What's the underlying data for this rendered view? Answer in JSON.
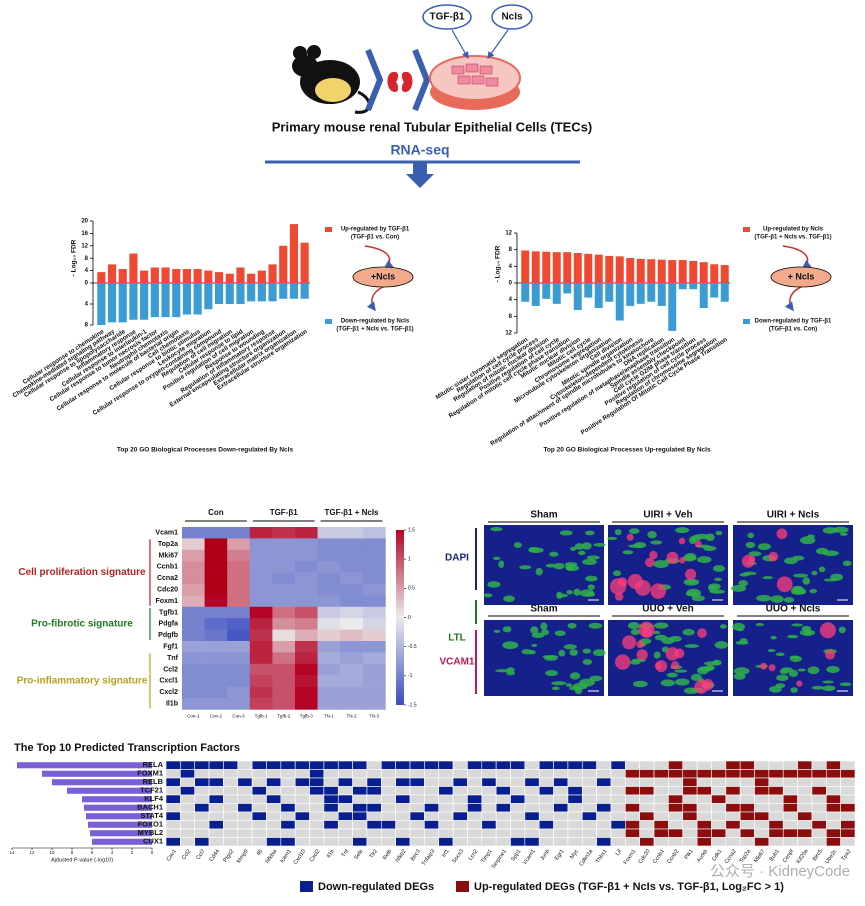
{
  "schematic": {
    "treatment": "TGF-β1",
    "drug": "NcIs",
    "cells": "Primary mouse renal Tubular Epithelial Cells (TECs)",
    "method": "RNA-seq"
  },
  "go_down": {
    "type": "bar",
    "title": "Top 20 GO Biological Processes Down-regulated By NcIs",
    "ylabel": "- Log₁₀ FDR",
    "treatment": "+NcIs",
    "categories": [
      "Cellular response to chemokine",
      "Chemokine-mediated signaling pathway",
      "Cellular response to lipopolysaccharide",
      "Inflammatory response",
      "Cellular response to interleukin-1",
      "Cellular response to tumor necrosis factor",
      "Neutrophil chemotaxis",
      "Cellular response to molecule of bacterial origin",
      "Cell chemotaxis",
      "Cellular response to biotic stimulus",
      "Leukocyte migration",
      "Cellular response to oxygen-containing compound",
      "Regulation of cell migration",
      "Cellular response to lipid",
      "Positive regulation of cell migration",
      "Response to wounding",
      "Regulation of inflammatory response",
      "External encapsulating structure organization",
      "Extracellular matrix organization",
      "Extracellular structure organization"
    ],
    "up": {
      "name": "Up-regulated by TGF-β1",
      "detail": "(TGF-β1 vs. Con)",
      "color": "#ee4a32",
      "values": [
        3.5,
        6,
        4.5,
        9.5,
        4,
        5,
        5,
        4.5,
        4.5,
        4.5,
        4,
        3.5,
        3,
        5,
        3,
        4,
        6,
        12,
        19,
        13
      ]
    },
    "down": {
      "name": "Down-regulated by NcIs",
      "detail": "(TGF-β1 + NcIs vs. TGF-β1)",
      "color": "#3b9bd3",
      "values": [
        8,
        7.5,
        7.5,
        7,
        7,
        6.5,
        6.5,
        6.5,
        6,
        6,
        5,
        4,
        4,
        4,
        3.5,
        3.5,
        3.5,
        3,
        3,
        3
      ]
    },
    "ylim_up": [
      0,
      20
    ],
    "yticks_up": [
      0,
      4,
      8,
      12,
      16,
      20
    ],
    "ylim_down": [
      0,
      8
    ],
    "yticks_down": [
      4,
      8
    ]
  },
  "go_up": {
    "type": "bar",
    "title": "Top 20 GO Biological Processes Up-regulated By NcIs",
    "ylabel": "- Log₁₀ FDR",
    "treatment": "+ NcIs",
    "categories": [
      "Mitotic sister chromatid segregation",
      "Regulation of cell cycle process",
      "Regulation of mitotic nuclear division",
      "Positive regulation of cell cycle",
      "Regulation of mitotic cell cycle phase transition",
      "Mitotic nuclear division",
      "Mitotic cell cycle",
      "Chromosome segregation",
      "Microtubule cytoskeleton organization",
      "Cell division",
      "Mitotic spindle organization",
      "Cytoskeleton-dependent cytokinesis",
      "Regulation of attachment of spindle microtubules to kinetochore",
      "DNA replication",
      "Positive regulation of metaphase/anaphase transition",
      "Spindle assembly checkpoint",
      "Cell cycle G2/M phase transition",
      "Positive regulation of cell cycle process",
      "Regulation of chromosome segregation",
      "Positive Regulation Of Mitotic Cell Cycle Phase Transition"
    ],
    "up": {
      "name": "Up-regulated by NcIs",
      "detail": "(TGF-β1 + NcIs vs. TGF-β1)",
      "color": "#ee4a32",
      "values": [
        7.8,
        7.6,
        7.5,
        7.4,
        7.4,
        7.2,
        7,
        6.8,
        6.5,
        6.4,
        6,
        5.8,
        5.7,
        5.6,
        5.5,
        5.5,
        5.3,
        5,
        4.5,
        4.3
      ]
    },
    "down": {
      "name": "Down-regulated by TGF-β1",
      "detail": "(TGF-β1 vs. Con)",
      "color": "#3b9bd3",
      "values": [
        4.5,
        5.5,
        3.8,
        5,
        2.5,
        6.5,
        3.5,
        6,
        4.5,
        9,
        5.5,
        5,
        4.5,
        5.5,
        11.5,
        1.5,
        1.5,
        6,
        3.5,
        4.5
      ]
    },
    "ylim_up": [
      0,
      12
    ],
    "yticks_up": [
      0,
      4,
      8,
      12
    ],
    "ylim_down": [
      0,
      12
    ],
    "yticks_down": [
      4,
      8,
      12
    ]
  },
  "heatmap": {
    "groups": [
      "Con",
      "TGF-β1",
      "TGF-β1 + NcIs"
    ],
    "columns": [
      "Con-1",
      "Con-2",
      "Con-3",
      "Tgfb-1",
      "Tgfb-2",
      "Tgfb-3",
      "TN-1",
      "TN-2",
      "TN-3"
    ],
    "genes": [
      "Vcam1",
      "Top2a",
      "Mki67",
      "Ccnb1",
      "Ccna2",
      "Cdc20",
      "Foxm1",
      "Tgfb1",
      "Pdgfa",
      "Pdgfb",
      "Fgf1",
      "Tnf",
      "Ccl2",
      "Cxcl1",
      "Cxcl2",
      "Il1b"
    ],
    "signatures": [
      {
        "name": "Cell proliferation signature",
        "color": "#b22222",
        "from": 1,
        "to": 6
      },
      {
        "name": "Pro-fibrotic signature",
        "color": "#1e7a1e",
        "from": 7,
        "to": 9
      },
      {
        "name": "Pro-inflammatory signature",
        "color": "#b8a21a",
        "from": 11,
        "to": 15
      }
    ],
    "values": [
      [
        -1,
        -1,
        -1,
        1.3,
        1.2,
        1.3,
        -0.3,
        -0.3,
        -0.4
      ],
      [
        0.2,
        1.6,
        0.5,
        -0.8,
        -0.8,
        -0.8,
        -0.9,
        -0.9,
        -0.9
      ],
      [
        0.5,
        1.6,
        0.7,
        -0.8,
        -0.8,
        -0.8,
        -0.9,
        -0.9,
        -0.9
      ],
      [
        0.6,
        1.6,
        0.8,
        -0.8,
        -0.8,
        -0.9,
        -0.8,
        -0.9,
        -0.9
      ],
      [
        0.6,
        1.6,
        0.8,
        -0.8,
        -0.9,
        -0.8,
        -0.9,
        -0.8,
        -0.9
      ],
      [
        0.5,
        1.6,
        0.8,
        -0.8,
        -0.8,
        -0.8,
        -0.9,
        -0.9,
        -0.8
      ],
      [
        0.4,
        1.5,
        0.8,
        -0.8,
        -0.8,
        -0.8,
        -0.8,
        -0.9,
        -0.9
      ],
      [
        -1,
        -1,
        -1,
        1.5,
        0.8,
        1,
        -0.3,
        -0.2,
        -0.3
      ],
      [
        -1,
        -1.2,
        -1.3,
        1.3,
        0.6,
        0.7,
        -0.1,
        0,
        -0.2
      ],
      [
        -1,
        -1.1,
        -1.4,
        1.2,
        0.1,
        0.4,
        0.2,
        0.3,
        0.2
      ],
      [
        -0.7,
        -0.7,
        -0.7,
        1.3,
        0.5,
        1.2,
        -0.7,
        -0.8,
        -0.8
      ],
      [
        -0.8,
        -0.8,
        -0.8,
        1.3,
        0.8,
        1.3,
        -0.6,
        -0.7,
        -0.6
      ],
      [
        -0.9,
        -0.9,
        -0.9,
        1,
        1,
        1.5,
        -0.7,
        -0.6,
        -0.7
      ],
      [
        -0.9,
        -0.9,
        -0.9,
        1.1,
        1,
        1.4,
        -0.6,
        -0.6,
        -0.7
      ],
      [
        -0.9,
        -0.9,
        -0.8,
        1.2,
        1,
        1.5,
        -0.7,
        -0.7,
        -0.7
      ],
      [
        -0.8,
        -0.8,
        -0.8,
        1.1,
        1,
        1.5,
        -0.7,
        -0.7,
        -0.7
      ]
    ],
    "clim": [
      -1.5,
      1.5
    ],
    "cticks": [
      1.5,
      1,
      0.5,
      0,
      -0.5,
      -1,
      -1.5
    ]
  },
  "if_panel": {
    "top": [
      "Sham",
      "UIRI + Veh",
      "UIRI + NcIs"
    ],
    "bottom": [
      "Sham",
      "UUO + Veh",
      "UUO + NcIs"
    ],
    "stains": [
      "DAPI",
      "LTL",
      "VCAM1"
    ]
  },
  "tf": {
    "title": "The Top 10 Predicted Transcription Factors",
    "xlabel": "Ajdusted P-value (-log10)",
    "xlim": [
      0,
      14
    ],
    "xticks": [
      0,
      2,
      4,
      6,
      8,
      10,
      12,
      14
    ],
    "genes": [
      "Cav1",
      "Ccl2",
      "Ccl7",
      "Cd44",
      "Ptgs2",
      "Mmp9",
      "Il6",
      "Nfkbia",
      "Icam1",
      "Cxcl10",
      "Cxcl2",
      "Il1b",
      "Tnf",
      "Sele",
      "Tlr2",
      "Relb",
      "Nfkb2",
      "Birc3",
      "Tnfaip3",
      "Irf1",
      "Socs3",
      "Lcn2",
      "Timp1",
      "Serpine1",
      "Spp1",
      "Vcam1",
      "Junb",
      "Egr1",
      "Myc",
      "Cdkn1a",
      "Thbs1",
      "Lif",
      "Foxm1",
      "Cdc20",
      "Ccnb1",
      "Ccnb2",
      "Plk1",
      "Aurkb",
      "Cdk1",
      "Ccna2",
      "Top2a",
      "Mki67",
      "Bub1",
      "Cenpf",
      "Kif20a",
      "Birc5",
      "Ube2c",
      "Tpx2"
    ],
    "legend": [
      {
        "name": "Down-regulated DEGs",
        "color": "#0a1f8f"
      },
      {
        "name": "Up-regulated DEGs (TGF-β1 + NcIs vs. TGF-β1, Log₂FC > 1)",
        "color": "#8b0d0d"
      }
    ],
    "factors": [
      {
        "name": "RELA",
        "score": 13.5,
        "cells": [
          1,
          1,
          1,
          1,
          1,
          0,
          1,
          1,
          1,
          1,
          1,
          1,
          1,
          1,
          0,
          1,
          1,
          1,
          1,
          1,
          0,
          1,
          1,
          1,
          1,
          0,
          1,
          1,
          1,
          1,
          0,
          1,
          0,
          0,
          0,
          2,
          0,
          0,
          0,
          2,
          2,
          0,
          0,
          0,
          2,
          0,
          2,
          0
        ]
      },
      {
        "name": "FOXM1",
        "score": 11,
        "cells": [
          0,
          1,
          0,
          0,
          0,
          0,
          0,
          0,
          0,
          0,
          1,
          0,
          0,
          0,
          0,
          0,
          0,
          0,
          0,
          0,
          0,
          0,
          0,
          0,
          0,
          0,
          0,
          0,
          0,
          0,
          0,
          0,
          2,
          2,
          2,
          2,
          2,
          2,
          2,
          2,
          2,
          2,
          2,
          2,
          2,
          2,
          2,
          2
        ]
      },
      {
        "name": "RELB",
        "score": 10,
        "cells": [
          1,
          0,
          1,
          1,
          0,
          1,
          0,
          1,
          0,
          1,
          1,
          0,
          1,
          0,
          1,
          0,
          1,
          1,
          0,
          0,
          1,
          0,
          1,
          0,
          0,
          1,
          0,
          1,
          0,
          0,
          1,
          0,
          0,
          0,
          0,
          0,
          2,
          0,
          0,
          0,
          0,
          2,
          0,
          0,
          0,
          0,
          0,
          0
        ]
      },
      {
        "name": "TCF21",
        "score": 8.5,
        "cells": [
          0,
          1,
          0,
          0,
          0,
          0,
          1,
          0,
          0,
          0,
          1,
          1,
          0,
          1,
          1,
          0,
          0,
          0,
          0,
          1,
          0,
          0,
          0,
          1,
          0,
          0,
          1,
          0,
          1,
          0,
          0,
          0,
          2,
          2,
          0,
          0,
          2,
          2,
          0,
          2,
          0,
          2,
          2,
          0,
          0,
          2,
          0,
          0
        ]
      },
      {
        "name": "KLF4",
        "score": 7,
        "cells": [
          1,
          0,
          0,
          1,
          0,
          0,
          0,
          1,
          0,
          0,
          0,
          1,
          1,
          0,
          0,
          0,
          1,
          0,
          0,
          0,
          0,
          1,
          0,
          0,
          1,
          0,
          0,
          0,
          1,
          0,
          0,
          0,
          0,
          0,
          0,
          2,
          0,
          0,
          2,
          0,
          0,
          0,
          0,
          2,
          0,
          0,
          2,
          0
        ]
      },
      {
        "name": "BACH1",
        "score": 6.8,
        "cells": [
          0,
          0,
          1,
          0,
          0,
          1,
          0,
          0,
          1,
          0,
          0,
          1,
          0,
          1,
          1,
          0,
          0,
          0,
          1,
          0,
          0,
          1,
          0,
          1,
          0,
          0,
          0,
          1,
          0,
          0,
          1,
          0,
          2,
          0,
          0,
          2,
          2,
          0,
          0,
          2,
          2,
          0,
          0,
          2,
          0,
          0,
          2,
          2
        ]
      },
      {
        "name": "STAT4",
        "score": 6.6,
        "cells": [
          1,
          0,
          0,
          0,
          0,
          0,
          1,
          0,
          0,
          1,
          0,
          0,
          1,
          1,
          0,
          0,
          0,
          1,
          0,
          0,
          1,
          0,
          0,
          0,
          0,
          1,
          0,
          0,
          0,
          1,
          0,
          0,
          0,
          2,
          0,
          0,
          2,
          0,
          0,
          0,
          2,
          2,
          0,
          0,
          2,
          0,
          0,
          0
        ]
      },
      {
        "name": "FOXO1",
        "score": 6.4,
        "cells": [
          0,
          0,
          0,
          1,
          0,
          0,
          0,
          0,
          1,
          0,
          0,
          1,
          0,
          0,
          1,
          1,
          0,
          0,
          1,
          0,
          0,
          0,
          1,
          0,
          0,
          0,
          1,
          0,
          0,
          0,
          0,
          1,
          2,
          0,
          2,
          0,
          0,
          2,
          0,
          2,
          0,
          0,
          2,
          0,
          0,
          2,
          0,
          2
        ]
      },
      {
        "name": "MYBL2",
        "score": 6.2,
        "cells": [
          0,
          0,
          0,
          0,
          0,
          0,
          0,
          0,
          0,
          0,
          0,
          0,
          0,
          0,
          0,
          0,
          0,
          0,
          0,
          0,
          0,
          0,
          0,
          0,
          0,
          0,
          0,
          0,
          0,
          0,
          0,
          0,
          2,
          0,
          2,
          2,
          0,
          2,
          2,
          0,
          2,
          0,
          2,
          2,
          2,
          0,
          2,
          2
        ]
      },
      {
        "name": "CUX1",
        "score": 6,
        "cells": [
          1,
          0,
          1,
          0,
          0,
          0,
          0,
          1,
          1,
          0,
          0,
          0,
          0,
          1,
          0,
          0,
          1,
          0,
          0,
          1,
          0,
          0,
          0,
          0,
          1,
          1,
          0,
          0,
          0,
          0,
          1,
          0,
          0,
          2,
          0,
          0,
          0,
          2,
          0,
          0,
          0,
          2,
          0,
          0,
          0,
          0,
          2,
          0
        ]
      }
    ],
    "bar_color": "#7b5fd6",
    "empty_color": "#d9d9d9"
  },
  "watermark": "公众号 · KidneyCode"
}
